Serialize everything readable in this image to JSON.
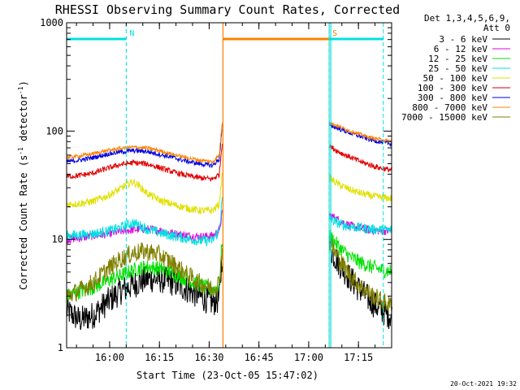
{
  "chart_data": {
    "type": "line",
    "title": "RHESSI Observing Summary Count Rates, Corrected",
    "xlabel": "Start Time (23-Oct-05 15:47:02)",
    "ylabel": "Corrected Count Rate (s⁻¹ detector⁻¹)",
    "ylabel_main": "Corrected Count Rate (s",
    "ylabel_sup1": "-1",
    "ylabel_mid": " detector",
    "ylabel_sup2": "-1",
    "ylabel_end": ")",
    "y_scale": "log",
    "ylim": [
      1,
      1000
    ],
    "xlim": [
      "15:47:02",
      "17:25:00"
    ],
    "x_ticks": [
      "16:00",
      "16:15",
      "16:30",
      "16:45",
      "17:00",
      "17:15"
    ],
    "y_ticks": [
      "1",
      "10",
      "100",
      "1000"
    ],
    "legend_header": [
      "Det 1,3,4,5,6,9,",
      "Att 0"
    ],
    "legend_position": "right",
    "footer_date": "20-Oct-2021 19:32",
    "data_gap": [
      "16:34:10",
      "17:06:10"
    ],
    "series": [
      {
        "name": "3 - 6 keV",
        "color": "#000000",
        "pre": [
          [
            0,
            2.2
          ],
          [
            4,
            1.8
          ],
          [
            8,
            2.0
          ],
          [
            12,
            2.6
          ],
          [
            16,
            3.3
          ],
          [
            20,
            3.8
          ],
          [
            24,
            4.3
          ],
          [
            28,
            4.3
          ],
          [
            32,
            4.0
          ],
          [
            36,
            3.5
          ],
          [
            40,
            3.0
          ],
          [
            44,
            2.6
          ],
          [
            46,
            2.8
          ],
          [
            47,
            8
          ]
        ],
        "post": [
          [
            0,
            8.5
          ],
          [
            3,
            6.0
          ],
          [
            6,
            4.5
          ],
          [
            9,
            3.5
          ],
          [
            12,
            2.8
          ],
          [
            15,
            2.3
          ],
          [
            18,
            2.0
          ],
          [
            19,
            2.0
          ]
        ]
      },
      {
        "name": "6 - 12 keV",
        "color": "#e000e0",
        "pre": [
          [
            0,
            10.0
          ],
          [
            4,
            10.3
          ],
          [
            8,
            10.8
          ],
          [
            12,
            11.2
          ],
          [
            16,
            11.8
          ],
          [
            20,
            12.3
          ],
          [
            24,
            12.5
          ],
          [
            28,
            12.1
          ],
          [
            32,
            11.4
          ],
          [
            36,
            10.9
          ],
          [
            40,
            10.6
          ],
          [
            44,
            10.8
          ],
          [
            46,
            12
          ],
          [
            47,
            18
          ]
        ],
        "post": [
          [
            0,
            17
          ],
          [
            3,
            15
          ],
          [
            6,
            13.5
          ],
          [
            9,
            12.8
          ],
          [
            12,
            12.2
          ],
          [
            15,
            12.0
          ],
          [
            18,
            12.0
          ],
          [
            19,
            12.0
          ]
        ]
      },
      {
        "name": "12 - 25 keV",
        "color": "#00e000",
        "pre": [
          [
            0,
            3.0
          ],
          [
            4,
            3.3
          ],
          [
            8,
            3.6
          ],
          [
            12,
            4.1
          ],
          [
            16,
            4.6
          ],
          [
            20,
            5.2
          ],
          [
            24,
            5.6
          ],
          [
            28,
            5.4
          ],
          [
            32,
            4.9
          ],
          [
            36,
            4.3
          ],
          [
            40,
            3.8
          ],
          [
            44,
            3.4
          ],
          [
            46,
            3.7
          ],
          [
            47,
            11
          ]
        ],
        "post": [
          [
            0,
            11
          ],
          [
            3,
            8.5
          ],
          [
            6,
            7.0
          ],
          [
            9,
            6.2
          ],
          [
            12,
            5.7
          ],
          [
            15,
            5.3
          ],
          [
            18,
            5.1
          ],
          [
            19,
            5.1
          ]
        ]
      },
      {
        "name": "25 - 50 keV",
        "color": "#00e0e0",
        "pre": [
          [
            0,
            10.8
          ],
          [
            4,
            11.0
          ],
          [
            8,
            11.3
          ],
          [
            12,
            11.8
          ],
          [
            16,
            12.8
          ],
          [
            18,
            13.5
          ],
          [
            20,
            14.2
          ],
          [
            22,
            13.5
          ],
          [
            24,
            12.5
          ],
          [
            28,
            11.5
          ],
          [
            32,
            10.8
          ],
          [
            36,
            10.2
          ],
          [
            40,
            9.7
          ],
          [
            44,
            9.8
          ],
          [
            46,
            12
          ],
          [
            47,
            25
          ]
        ],
        "post": [
          [
            0,
            15.5
          ],
          [
            3,
            14
          ],
          [
            6,
            13.2
          ],
          [
            9,
            12.8
          ],
          [
            12,
            12.5
          ],
          [
            15,
            12.3
          ],
          [
            18,
            12.2
          ],
          [
            19,
            12.2
          ]
        ]
      },
      {
        "name": "50 - 100 keV",
        "color": "#e0e000",
        "pre": [
          [
            0,
            21
          ],
          [
            4,
            21.5
          ],
          [
            8,
            22.5
          ],
          [
            12,
            25
          ],
          [
            16,
            29
          ],
          [
            18,
            32
          ],
          [
            20,
            34
          ],
          [
            22,
            31
          ],
          [
            24,
            27
          ],
          [
            28,
            23
          ],
          [
            32,
            21
          ],
          [
            36,
            19.5
          ],
          [
            40,
            18.5
          ],
          [
            44,
            18.5
          ],
          [
            46,
            21
          ],
          [
            47,
            45
          ]
        ],
        "post": [
          [
            0,
            37
          ],
          [
            3,
            32
          ],
          [
            6,
            29
          ],
          [
            9,
            27
          ],
          [
            12,
            25.5
          ],
          [
            15,
            24.5
          ],
          [
            18,
            24
          ],
          [
            19,
            24
          ]
        ]
      },
      {
        "name": "100 - 300 keV",
        "color": "#e00000",
        "pre": [
          [
            0,
            38
          ],
          [
            4,
            39
          ],
          [
            8,
            41
          ],
          [
            12,
            45
          ],
          [
            16,
            49
          ],
          [
            20,
            51
          ],
          [
            24,
            50
          ],
          [
            28,
            46
          ],
          [
            32,
            42
          ],
          [
            36,
            39
          ],
          [
            40,
            37
          ],
          [
            44,
            36
          ],
          [
            46,
            40
          ],
          [
            47,
            85
          ]
        ],
        "post": [
          [
            0,
            73
          ],
          [
            3,
            64
          ],
          [
            6,
            58
          ],
          [
            9,
            53
          ],
          [
            12,
            49
          ],
          [
            15,
            46
          ],
          [
            18,
            44
          ],
          [
            19,
            44
          ]
        ]
      },
      {
        "name": "300 - 800 keV",
        "color": "#0000e0",
        "pre": [
          [
            0,
            52
          ],
          [
            4,
            54
          ],
          [
            8,
            57
          ],
          [
            12,
            61
          ],
          [
            16,
            64
          ],
          [
            20,
            66
          ],
          [
            24,
            65
          ],
          [
            28,
            61
          ],
          [
            32,
            57
          ],
          [
            36,
            53
          ],
          [
            40,
            50
          ],
          [
            44,
            48
          ],
          [
            46,
            55
          ],
          [
            47,
            120
          ]
        ],
        "post": [
          [
            0,
            115
          ],
          [
            3,
            105
          ],
          [
            6,
            97
          ],
          [
            9,
            90
          ],
          [
            12,
            84
          ],
          [
            15,
            80
          ],
          [
            18,
            77
          ],
          [
            19,
            77
          ]
        ]
      },
      {
        "name": "800 - 7000 keV",
        "color": "#ff8000",
        "pre": [
          [
            0,
            57
          ],
          [
            4,
            59
          ],
          [
            8,
            62
          ],
          [
            12,
            66
          ],
          [
            16,
            69
          ],
          [
            20,
            71
          ],
          [
            24,
            70
          ],
          [
            28,
            66
          ],
          [
            32,
            61
          ],
          [
            36,
            57
          ],
          [
            40,
            54
          ],
          [
            44,
            52
          ],
          [
            46,
            60
          ],
          [
            47,
            130
          ]
        ],
        "post": [
          [
            0,
            120
          ],
          [
            3,
            110
          ],
          [
            6,
            101
          ],
          [
            9,
            94
          ],
          [
            12,
            88
          ],
          [
            15,
            84
          ],
          [
            18,
            81
          ],
          [
            19,
            81
          ]
        ]
      },
      {
        "name": "7000 - 15000 keV",
        "color": "#808000",
        "pre": [
          [
            0,
            3.0
          ],
          [
            4,
            3.4
          ],
          [
            8,
            4.0
          ],
          [
            12,
            5.2
          ],
          [
            16,
            6.5
          ],
          [
            20,
            7.5
          ],
          [
            24,
            7.8
          ],
          [
            28,
            7.2
          ],
          [
            32,
            6.0
          ],
          [
            36,
            4.8
          ],
          [
            40,
            4.0
          ],
          [
            44,
            3.5
          ],
          [
            46,
            4.0
          ],
          [
            47,
            9
          ]
        ],
        "post": [
          [
            0,
            9.5
          ],
          [
            3,
            6.5
          ],
          [
            6,
            4.8
          ],
          [
            9,
            3.8
          ],
          [
            12,
            3.2
          ],
          [
            15,
            2.8
          ],
          [
            18,
            2.5
          ],
          [
            19,
            2.5
          ]
        ]
      }
    ],
    "annotations": [
      {
        "label": "N",
        "color": "#00e0e0",
        "from": "15:47:02",
        "to": "16:05:00"
      },
      {
        "label": "S",
        "color": "#ff8000",
        "from": "16:34:10",
        "to": "17:06:10"
      },
      {
        "label": "",
        "color": "#00e0e0",
        "from": "17:06:10",
        "to": "17:22:30"
      }
    ]
  }
}
